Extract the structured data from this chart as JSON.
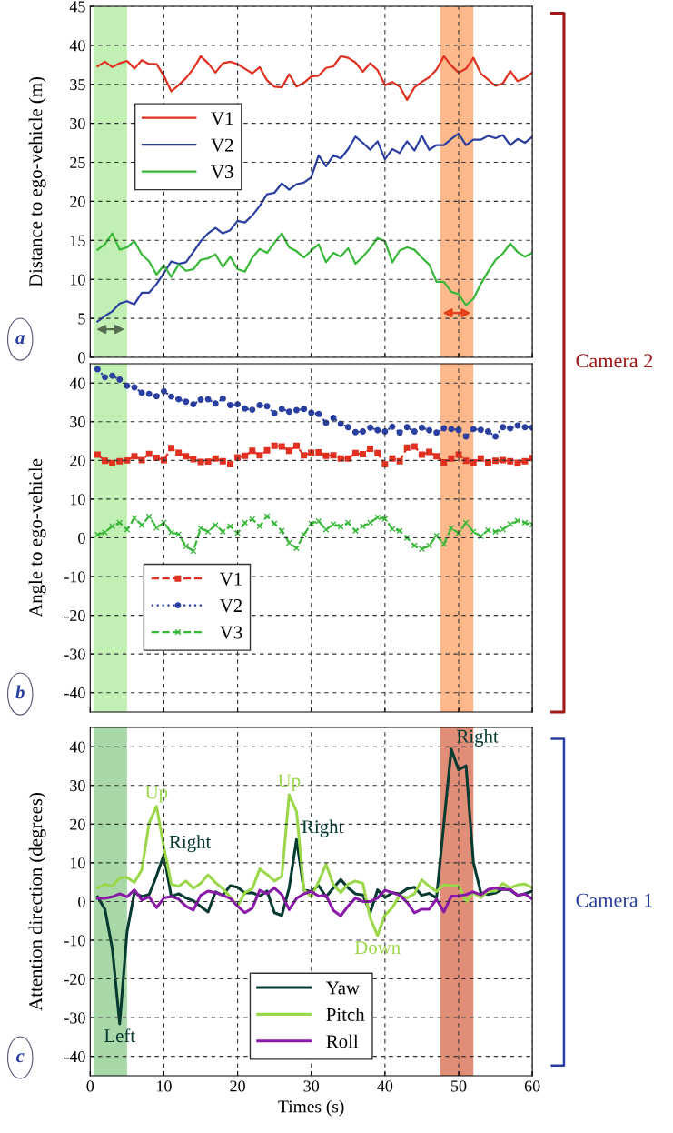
{
  "chart_data": [
    {
      "type": "line",
      "ylabel": "Distance to ego-vehicle (m)",
      "annotations": [
        "a",
        "Camera 2"
      ],
      "x": [
        1,
        2,
        3,
        4,
        5,
        6,
        7,
        8,
        9,
        10,
        11,
        12,
        13,
        14,
        15,
        16,
        17,
        18,
        19,
        20,
        21,
        22,
        23,
        24,
        25,
        26,
        27,
        28,
        29,
        30,
        31,
        32,
        33,
        34,
        35,
        36,
        37,
        38,
        39,
        40,
        41,
        42,
        43,
        44,
        45,
        46,
        47,
        48,
        49,
        50,
        51,
        52,
        53,
        54,
        55,
        56,
        57,
        58,
        59,
        60
      ],
      "series": [
        {
          "name": "V1",
          "color": "#e03020",
          "values": [
            37.3,
            37.9,
            37.2,
            37.7,
            38.0,
            37.0,
            38.1,
            37.6,
            37.6,
            36.1,
            34.1,
            34.9,
            35.8,
            37.0,
            38.6,
            37.7,
            36.5,
            37.7,
            37.9,
            37.6,
            37.0,
            36.4,
            37.2,
            35.5,
            34.7,
            34.6,
            36.3,
            34.7,
            35.2,
            36.0,
            36.1,
            37.1,
            37.3,
            38.6,
            38.4,
            37.8,
            36.6,
            37.7,
            36.8,
            34.9,
            35.3,
            34.7,
            33.0,
            34.6,
            35.3,
            35.9,
            36.9,
            38.6,
            37.4,
            36.5,
            37.0,
            38.4,
            36.4,
            35.6,
            34.8,
            35.1,
            36.7,
            35.4,
            35.8,
            36.5
          ]
        },
        {
          "name": "V2",
          "color": "#2a3fa0",
          "values": [
            4.6,
            5.3,
            5.9,
            6.9,
            7.2,
            6.8,
            8.3,
            8.3,
            9.4,
            10.8,
            12.3,
            12.0,
            12.2,
            13.5,
            14.9,
            15.9,
            16.6,
            15.9,
            16.3,
            17.5,
            17.3,
            18.2,
            19.4,
            20.9,
            21.1,
            22.3,
            21.5,
            22.2,
            22.4,
            23.1,
            25.9,
            24.5,
            25.9,
            25.5,
            26.7,
            28.3,
            27.5,
            26.6,
            27.7,
            25.4,
            26.7,
            26.2,
            27.7,
            26.5,
            28.4,
            26.6,
            27.2,
            27.2,
            28.0,
            28.7,
            27.2,
            27.9,
            27.9,
            28.4,
            28.1,
            28.5,
            27.2,
            28.0,
            27.5,
            28.3
          ]
        },
        {
          "name": "V3",
          "color": "#38b838",
          "values": [
            13.8,
            14.5,
            15.9,
            13.8,
            14.1,
            14.9,
            13.2,
            12.3,
            10.6,
            11.8,
            10.3,
            11.9,
            11.1,
            11.3,
            12.5,
            12.7,
            13.2,
            11.6,
            12.9,
            11.3,
            11.0,
            12.8,
            13.9,
            13.4,
            14.7,
            15.9,
            14.1,
            13.6,
            12.8,
            13.7,
            14.5,
            12.2,
            13.4,
            12.9,
            14.0,
            12.0,
            12.9,
            14.0,
            15.3,
            14.9,
            12.2,
            13.7,
            14.1,
            13.8,
            12.8,
            11.9,
            9.7,
            9.7,
            8.4,
            8.1,
            6.7,
            7.5,
            9.4,
            11.0,
            12.5,
            13.3,
            14.6,
            13.5,
            12.9,
            13.4
          ]
        }
      ],
      "bands": [
        {
          "axis": "x",
          "from": 0.5,
          "to": 5,
          "color": "#c2f0b4"
        },
        {
          "axis": "x",
          "from": 47.5,
          "to": 52,
          "color": "#fdb98c"
        }
      ],
      "xlim": [
        0,
        60
      ],
      "xticks": [
        0,
        10,
        20,
        30,
        40,
        50,
        60
      ],
      "ylim": [
        0,
        45
      ],
      "yticks": [
        0,
        5,
        10,
        15,
        20,
        25,
        30,
        35,
        40,
        45
      ],
      "tick_labels": "y",
      "grid": true,
      "legend": "center left",
      "line_style": "solid",
      "marker": "none"
    },
    {
      "type": "line",
      "ylabel": "Angle to ego-vehicle",
      "annotations": [
        "b"
      ],
      "x": [
        1,
        2,
        3,
        4,
        5,
        6,
        7,
        8,
        9,
        10,
        11,
        12,
        13,
        14,
        15,
        16,
        17,
        18,
        19,
        20,
        21,
        22,
        23,
        24,
        25,
        26,
        27,
        28,
        29,
        30,
        31,
        32,
        33,
        34,
        35,
        36,
        37,
        38,
        39,
        40,
        41,
        42,
        43,
        44,
        45,
        46,
        47,
        48,
        49,
        50,
        51,
        52,
        53,
        54,
        55,
        56,
        57,
        58,
        59,
        60
      ],
      "series": [
        {
          "name": "V1",
          "color": "#e03020",
          "marker": "square",
          "line_style": "dashed",
          "values": [
            21.5,
            19.9,
            19.3,
            19.8,
            20.0,
            21.1,
            20.1,
            21.7,
            20.7,
            20.1,
            23.2,
            22.0,
            21.1,
            20.3,
            19.6,
            19.7,
            20.5,
            19.8,
            19.0,
            20.8,
            21.2,
            22.5,
            21.3,
            22.6,
            23.8,
            23.6,
            22.5,
            23.8,
            21.3,
            22.0,
            22.1,
            21.2,
            21.3,
            20.5,
            20.5,
            21.9,
            21.6,
            23.0,
            21.9,
            19.0,
            20.5,
            19.8,
            23.3,
            23.6,
            21.5,
            22.2,
            21.1,
            19.5,
            20.5,
            21.5,
            19.9,
            19.5,
            20.5,
            19.5,
            19.9,
            20.1,
            19.8,
            19.4,
            19.8,
            20.6
          ]
        },
        {
          "name": "V2",
          "color": "#2a3fa0",
          "marker": "circle",
          "line_style": "dotted",
          "values": [
            43.6,
            41.5,
            41.9,
            40.9,
            39.3,
            38.9,
            37.5,
            37.2,
            36.6,
            37.9,
            36.5,
            35.8,
            35.2,
            34.5,
            35.7,
            35.8,
            34.7,
            36.0,
            34.3,
            34.5,
            33.4,
            33.1,
            34.3,
            34.0,
            32.2,
            33.3,
            32.6,
            33.0,
            33.3,
            32.3,
            32.0,
            29.7,
            31.0,
            29.5,
            28.6,
            27.3,
            27.5,
            28.5,
            27.8,
            27.5,
            28.7,
            27.2,
            28.6,
            27.5,
            28.5,
            27.8,
            27.2,
            28.3,
            28.1,
            27.9,
            26.2,
            28.1,
            27.9,
            27.5,
            26.2,
            28.6,
            28.3,
            29.0,
            28.6,
            28.5
          ]
        },
        {
          "name": "V3",
          "color": "#38b838",
          "marker": "cross",
          "line_style": "dashed",
          "values": [
            0.8,
            1.4,
            3.0,
            3.9,
            2.1,
            5.1,
            3.3,
            5.5,
            2.6,
            3.9,
            1.4,
            0.9,
            -2.2,
            -3.4,
            2.5,
            1.6,
            3.3,
            1.6,
            3.0,
            1.2,
            3.9,
            4.8,
            3.0,
            5.6,
            3.7,
            1.8,
            -1.3,
            -2.7,
            0.8,
            3.7,
            4.3,
            2.1,
            3.5,
            2.9,
            3.9,
            1.8,
            3.0,
            3.9,
            5.3,
            4.9,
            2.3,
            1.8,
            0.0,
            -2.0,
            -2.9,
            -2.0,
            0.6,
            -1.6,
            2.5,
            1.2,
            3.9,
            1.6,
            0.4,
            2.0,
            1.6,
            2.2,
            3.5,
            4.4,
            3.9,
            3.4
          ]
        }
      ],
      "bands": [
        {
          "axis": "x",
          "from": 0.5,
          "to": 5,
          "color": "#c2f0b4"
        },
        {
          "axis": "x",
          "from": 47.5,
          "to": 52,
          "color": "#fdb98c"
        }
      ],
      "xlim": [
        0,
        60
      ],
      "xticks": [
        0,
        10,
        20,
        30,
        40,
        50,
        60
      ],
      "ylim": [
        -45,
        45
      ],
      "yticks": [
        -40,
        -30,
        -20,
        -10,
        0,
        10,
        20,
        30,
        40
      ],
      "tick_labels": "y",
      "grid": true,
      "legend": "bottom left"
    },
    {
      "type": "line",
      "xlabel": "Times (s)",
      "ylabel": "Attention direction (degrees)",
      "annotations": [
        "c",
        "Camera 1",
        {
          "text": "Up",
          "x": 9,
          "y": 24.6
        },
        {
          "text": "Right",
          "x": 10,
          "y": 12.1
        },
        {
          "text": "Up",
          "x": 27,
          "y": 27.6
        },
        {
          "text": "Right",
          "x": 28,
          "y": 16.0
        },
        {
          "text": "Down",
          "x": 39,
          "y": -8.8
        },
        {
          "text": "Right",
          "x": 49,
          "y": 39.4
        },
        {
          "text": "Left",
          "x": 4,
          "y": -31.6
        }
      ],
      "x": [
        1,
        2,
        3,
        4,
        5,
        6,
        7,
        8,
        9,
        10,
        11,
        12,
        13,
        14,
        15,
        16,
        17,
        18,
        19,
        20,
        21,
        22,
        23,
        24,
        25,
        26,
        27,
        28,
        29,
        30,
        31,
        32,
        33,
        34,
        35,
        36,
        37,
        38,
        39,
        40,
        41,
        42,
        43,
        44,
        45,
        46,
        47,
        48,
        49,
        50,
        51,
        52,
        53,
        54,
        55,
        56,
        57,
        58,
        59,
        60
      ],
      "series": [
        {
          "name": "Yaw",
          "color": "#053a30",
          "values": [
            1.2,
            -2.0,
            -12.1,
            -31.6,
            -7.8,
            2.3,
            1.3,
            1.8,
            6.6,
            12.1,
            1.3,
            2.0,
            0.9,
            0.2,
            -1.3,
            -2.7,
            2.5,
            1.6,
            4.1,
            3.7,
            2.2,
            2.3,
            1.4,
            2.7,
            -2.9,
            -3.6,
            3.5,
            16.0,
            2.9,
            2.6,
            4.1,
            1.2,
            3.5,
            5.7,
            3.5,
            2.0,
            1.7,
            -2.9,
            3.0,
            1.0,
            2.3,
            2.0,
            3.3,
            3.7,
            1.6,
            2.1,
            0.9,
            20.3,
            39.4,
            34.0,
            35.1,
            10.1,
            2.3,
            1.8,
            2.2,
            3.3,
            2.9,
            1.6,
            2.0,
            2.7
          ]
        },
        {
          "name": "Pitch",
          "color": "#9ad84a",
          "values": [
            3.5,
            4.4,
            3.9,
            6.1,
            6.2,
            4.9,
            8.2,
            20.3,
            24.6,
            14.1,
            4.5,
            3.9,
            5.3,
            3.4,
            4.7,
            6.9,
            4.9,
            3.3,
            1.2,
            -1.2,
            2.3,
            3.3,
            8.4,
            7.0,
            5.3,
            6.5,
            27.6,
            23.2,
            3.1,
            1.2,
            5.1,
            9.6,
            4.3,
            2.3,
            4.5,
            5.3,
            4.7,
            -4.3,
            -8.8,
            -3.5,
            -1.6,
            1.6,
            0.9,
            2.0,
            5.6,
            3.9,
            2.6,
            4.3,
            4.1,
            4.1,
            0.0,
            2.3,
            1.0,
            2.7,
            2.7,
            4.7,
            3.5,
            4.3,
            4.5,
            3.5
          ]
        },
        {
          "name": "Roll",
          "color": "#8a1aa8",
          "values": [
            0.8,
            0.8,
            1.2,
            2.0,
            1.2,
            3.0,
            0.4,
            1.2,
            -1.6,
            0.9,
            1.3,
            0.6,
            -1.2,
            -2.2,
            1.6,
            2.7,
            2.3,
            1.6,
            0.8,
            -1.2,
            -2.9,
            -1.7,
            2.9,
            2.0,
            3.5,
            1.8,
            -2.1,
            0.8,
            2.0,
            2.6,
            1.4,
            1.6,
            -2.3,
            -3.7,
            -1.2,
            0.9,
            0.0,
            0.0,
            0.9,
            2.9,
            2.3,
            1.6,
            -0.2,
            -2.9,
            -2.0,
            -2.0,
            0.6,
            -2.7,
            1.4,
            1.4,
            1.8,
            2.5,
            1.7,
            3.1,
            3.5,
            3.1,
            3.1,
            1.6,
            2.0,
            0.6
          ]
        }
      ],
      "bands": [
        {
          "axis": "x",
          "from": 0.5,
          "to": 5,
          "color": "#a8d8a8"
        },
        {
          "axis": "x",
          "from": 47.5,
          "to": 52,
          "color": "#e08e78"
        }
      ],
      "xlim": [
        0,
        60
      ],
      "xticks": [
        0,
        10,
        20,
        30,
        40,
        50,
        60
      ],
      "ylim": [
        -45,
        45
      ],
      "yticks": [
        -40,
        -30,
        -20,
        -10,
        0,
        10,
        20,
        30,
        40
      ],
      "grid": true,
      "legend": "bottom",
      "line_style": "solid",
      "marker": "none"
    }
  ]
}
